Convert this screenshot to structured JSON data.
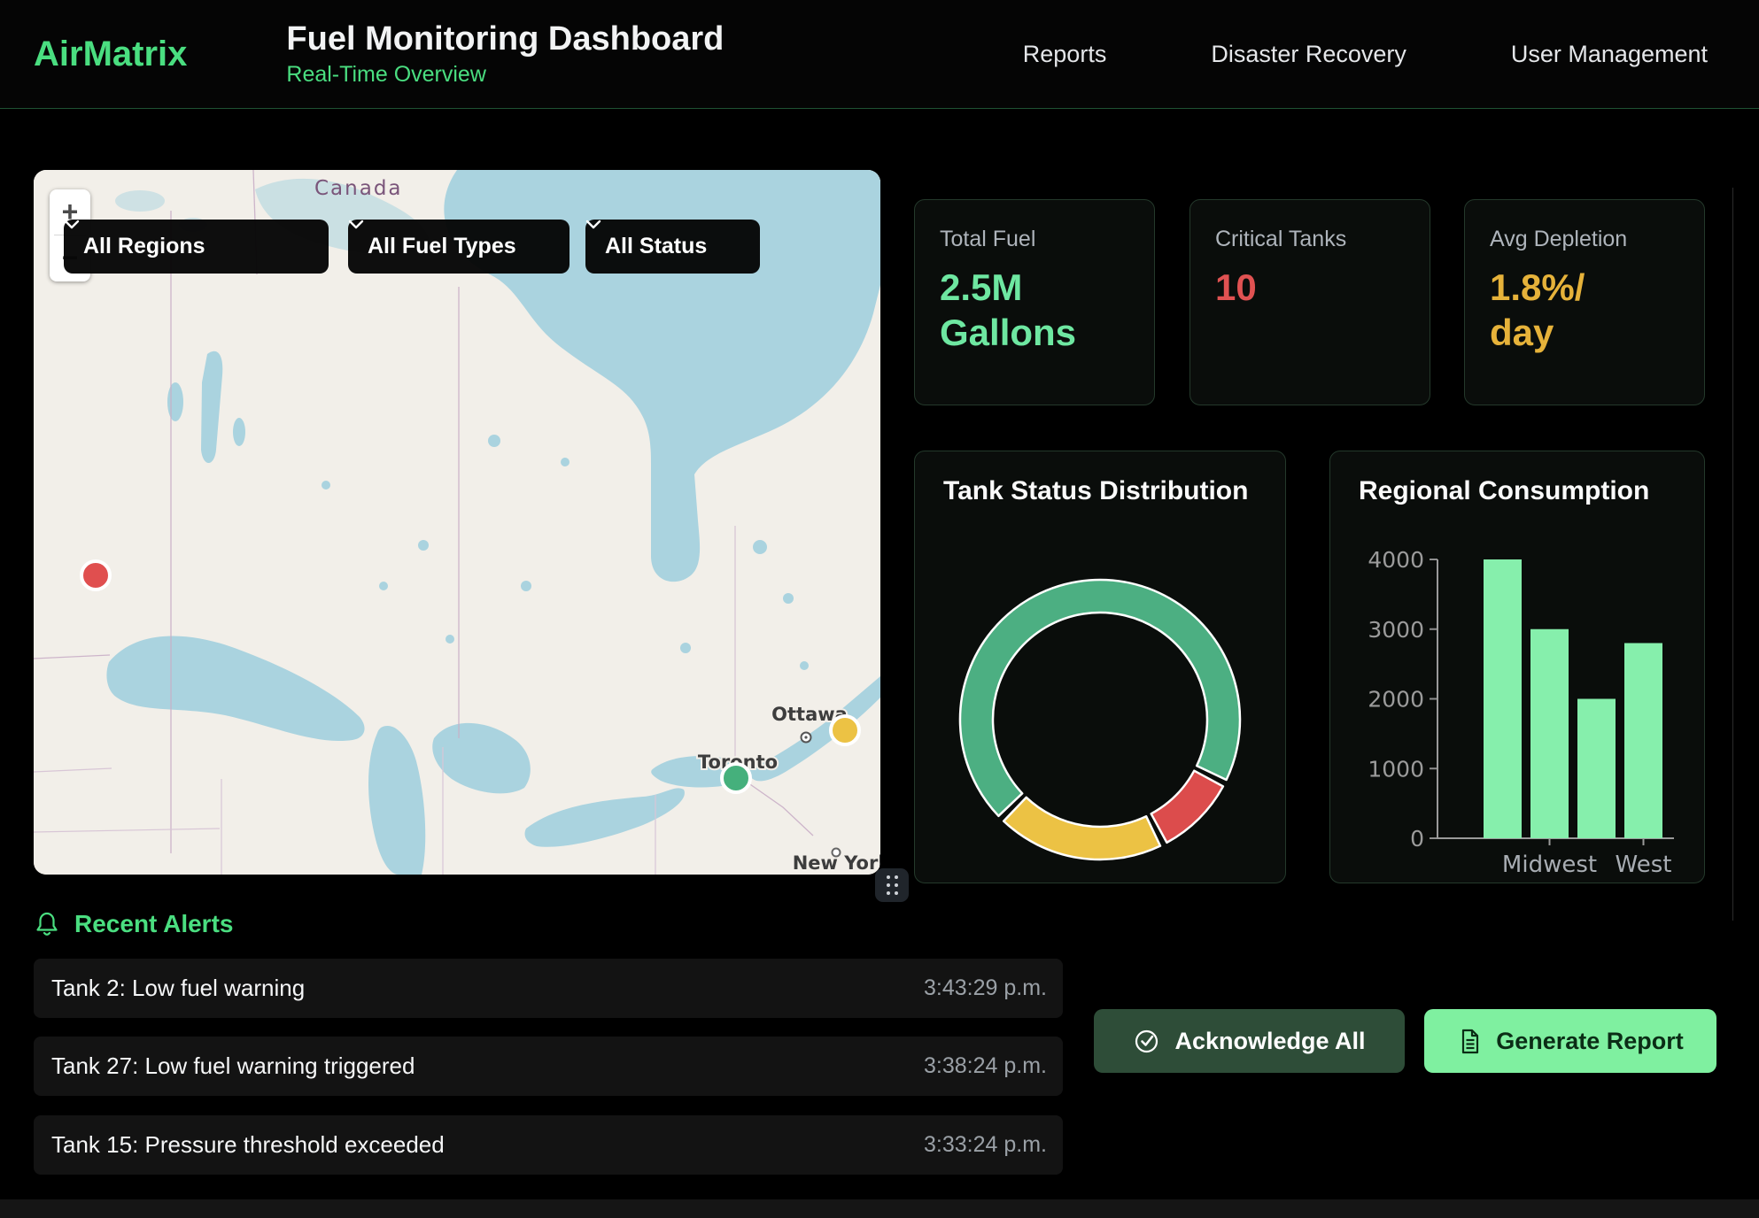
{
  "header": {
    "brand": "AirMatrix",
    "title": "Fuel Monitoring Dashboard",
    "subtitle": "Real-Time Overview",
    "nav": [
      {
        "label": "Reports"
      },
      {
        "label": "Disaster Recovery"
      },
      {
        "label": "User Management"
      }
    ]
  },
  "map": {
    "filters": [
      {
        "label": "All Regions"
      },
      {
        "label": "All Fuel Types"
      },
      {
        "label": "All Status"
      }
    ],
    "zoom_in": "+",
    "zoom_out": "−",
    "labels": {
      "country": "Canada",
      "cities": [
        "Ottawa",
        "Toronto",
        "New York"
      ]
    },
    "markers": [
      {
        "status": "critical",
        "color": "#e04f4f"
      },
      {
        "status": "warning",
        "color": "#ecc244"
      },
      {
        "status": "normal",
        "color": "#45b07c"
      }
    ]
  },
  "stats": [
    {
      "label": "Total Fuel",
      "value": "2.5M Gallons",
      "color": "#6ee7a1"
    },
    {
      "label": "Critical Tanks",
      "value": "10",
      "color": "#e05252"
    },
    {
      "label": "Avg Depletion",
      "value": "1.8%/day",
      "color": "#e6b23a"
    }
  ],
  "chart_data": [
    {
      "type": "pie",
      "donut": true,
      "title": "Tank Status Distribution",
      "rotation_deg": 225,
      "legend": false,
      "segments": [
        {
          "label": "normal",
          "value": 70,
          "color": "#4caf82"
        },
        {
          "label": "critical",
          "value": 10,
          "color": "#dc4c4c"
        },
        {
          "label": "warning",
          "value": 20,
          "color": "#ecc244"
        }
      ]
    },
    {
      "type": "bar",
      "title": "Regional Consumption",
      "categories": [
        "",
        "Midwest",
        "",
        "West"
      ],
      "values": [
        4000,
        3000,
        2000,
        2800
      ],
      "bar_color": "#86efac",
      "ylim": [
        0,
        4000
      ],
      "yticks": [
        0,
        1000,
        2000,
        3000,
        4000
      ],
      "grid": false,
      "legend_position": "none"
    }
  ],
  "alerts": {
    "section_title": "Recent Alerts",
    "items": [
      {
        "message": "Tank 2: Low fuel warning",
        "time": "3:43:29 p.m."
      },
      {
        "message": "Tank 27: Low fuel warning triggered",
        "time": "3:38:24 p.m."
      },
      {
        "message": "Tank 15: Pressure threshold exceeded",
        "time": "3:33:24 p.m."
      }
    ]
  },
  "actions": {
    "acknowledge_label": "Acknowledge All",
    "generate_label": "Generate Report"
  },
  "colors": {
    "accent_green": "#4ade80",
    "value_green": "#6ee7a1",
    "critical_red": "#e05252",
    "warning_yellow": "#e6b23a",
    "bar_green": "#86efac",
    "map_land": "#f2efe9",
    "map_water": "#aad3df"
  }
}
